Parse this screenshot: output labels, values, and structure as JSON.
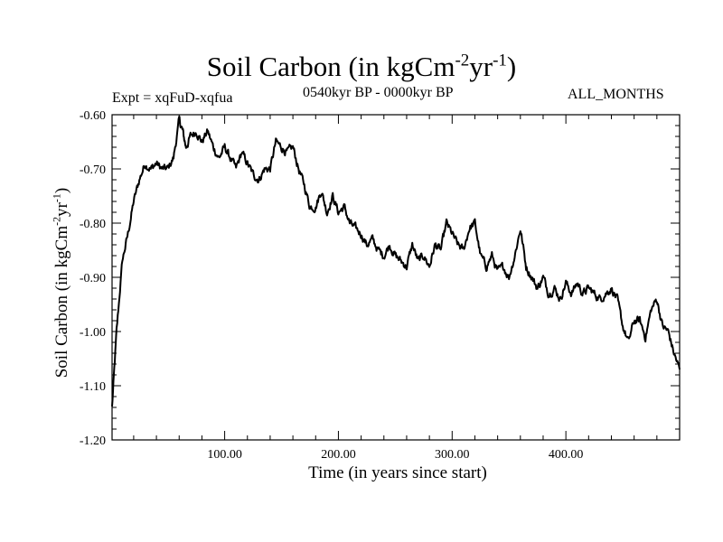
{
  "chart_data": {
    "type": "line",
    "title_main": "Soil Carbon (in kgCm",
    "title_sup1": "-2",
    "title_mid": "yr",
    "title_sup2": "-1",
    "title_end": ")",
    "subtitle_left": "Expt = xqFuD-xqfua",
    "subtitle_center": "0540kyr BP - 0000kyr BP",
    "subtitle_right": "ALL_MONTHS",
    "xlabel": "Time (in years since start)",
    "ylabel_main": "Soil Carbon (in kgCm",
    "ylabel_sup1": "-2",
    "ylabel_mid": "yr",
    "ylabel_sup2": "-1",
    "ylabel_end": ")",
    "xlim": [
      1,
      500
    ],
    "ylim": [
      -1.2,
      -0.6
    ],
    "xticks": [
      100,
      200,
      300,
      400
    ],
    "xtick_labels": [
      "100.00",
      "200.00",
      "300.00",
      "400.00"
    ],
    "yticks": [
      -0.6,
      -0.7,
      -0.8,
      -0.9,
      -1.0,
      -1.1,
      -1.2
    ],
    "ytick_labels": [
      "-0.60",
      "-0.70",
      "-0.80",
      "-0.90",
      "-1.00",
      "-1.10",
      "-1.20"
    ],
    "grid": false,
    "series": [
      {
        "name": "Soil Carbon",
        "color": "#000000",
        "x": [
          1,
          5,
          10,
          15,
          20,
          25,
          30,
          35,
          40,
          45,
          50,
          55,
          60,
          63,
          66,
          70,
          75,
          80,
          85,
          90,
          95,
          100,
          105,
          110,
          115,
          120,
          125,
          130,
          135,
          140,
          145,
          150,
          155,
          160,
          165,
          170,
          175,
          180,
          185,
          190,
          195,
          200,
          205,
          210,
          215,
          220,
          225,
          230,
          235,
          240,
          245,
          250,
          255,
          260,
          265,
          270,
          275,
          280,
          285,
          290,
          295,
          300,
          305,
          310,
          315,
          320,
          325,
          330,
          335,
          340,
          345,
          350,
          355,
          360,
          365,
          370,
          375,
          380,
          385,
          390,
          395,
          400,
          405,
          410,
          415,
          420,
          425,
          430,
          435,
          440,
          445,
          450,
          455,
          460,
          465,
          470,
          475,
          480,
          485,
          490,
          495,
          500
        ],
        "values": [
          -1.14,
          -1.0,
          -0.87,
          -0.82,
          -0.76,
          -0.72,
          -0.69,
          -0.7,
          -0.69,
          -0.7,
          -0.7,
          -0.68,
          -0.61,
          -0.63,
          -0.66,
          -0.64,
          -0.63,
          -0.65,
          -0.63,
          -0.66,
          -0.68,
          -0.66,
          -0.68,
          -0.7,
          -0.67,
          -0.69,
          -0.71,
          -0.72,
          -0.7,
          -0.7,
          -0.65,
          -0.66,
          -0.67,
          -0.66,
          -0.7,
          -0.73,
          -0.77,
          -0.77,
          -0.74,
          -0.78,
          -0.75,
          -0.78,
          -0.77,
          -0.8,
          -0.81,
          -0.82,
          -0.84,
          -0.83,
          -0.85,
          -0.86,
          -0.84,
          -0.86,
          -0.87,
          -0.88,
          -0.84,
          -0.87,
          -0.86,
          -0.88,
          -0.84,
          -0.85,
          -0.8,
          -0.82,
          -0.84,
          -0.85,
          -0.81,
          -0.8,
          -0.86,
          -0.88,
          -0.86,
          -0.89,
          -0.88,
          -0.9,
          -0.86,
          -0.81,
          -0.88,
          -0.9,
          -0.92,
          -0.9,
          -0.93,
          -0.92,
          -0.94,
          -0.91,
          -0.93,
          -0.91,
          -0.93,
          -0.92,
          -0.93,
          -0.94,
          -0.93,
          -0.92,
          -0.94,
          -0.99,
          -1.02,
          -0.98,
          -0.98,
          -1.01,
          -0.96,
          -0.94,
          -0.99,
          -1.0,
          -1.04,
          -1.07
        ]
      }
    ]
  }
}
